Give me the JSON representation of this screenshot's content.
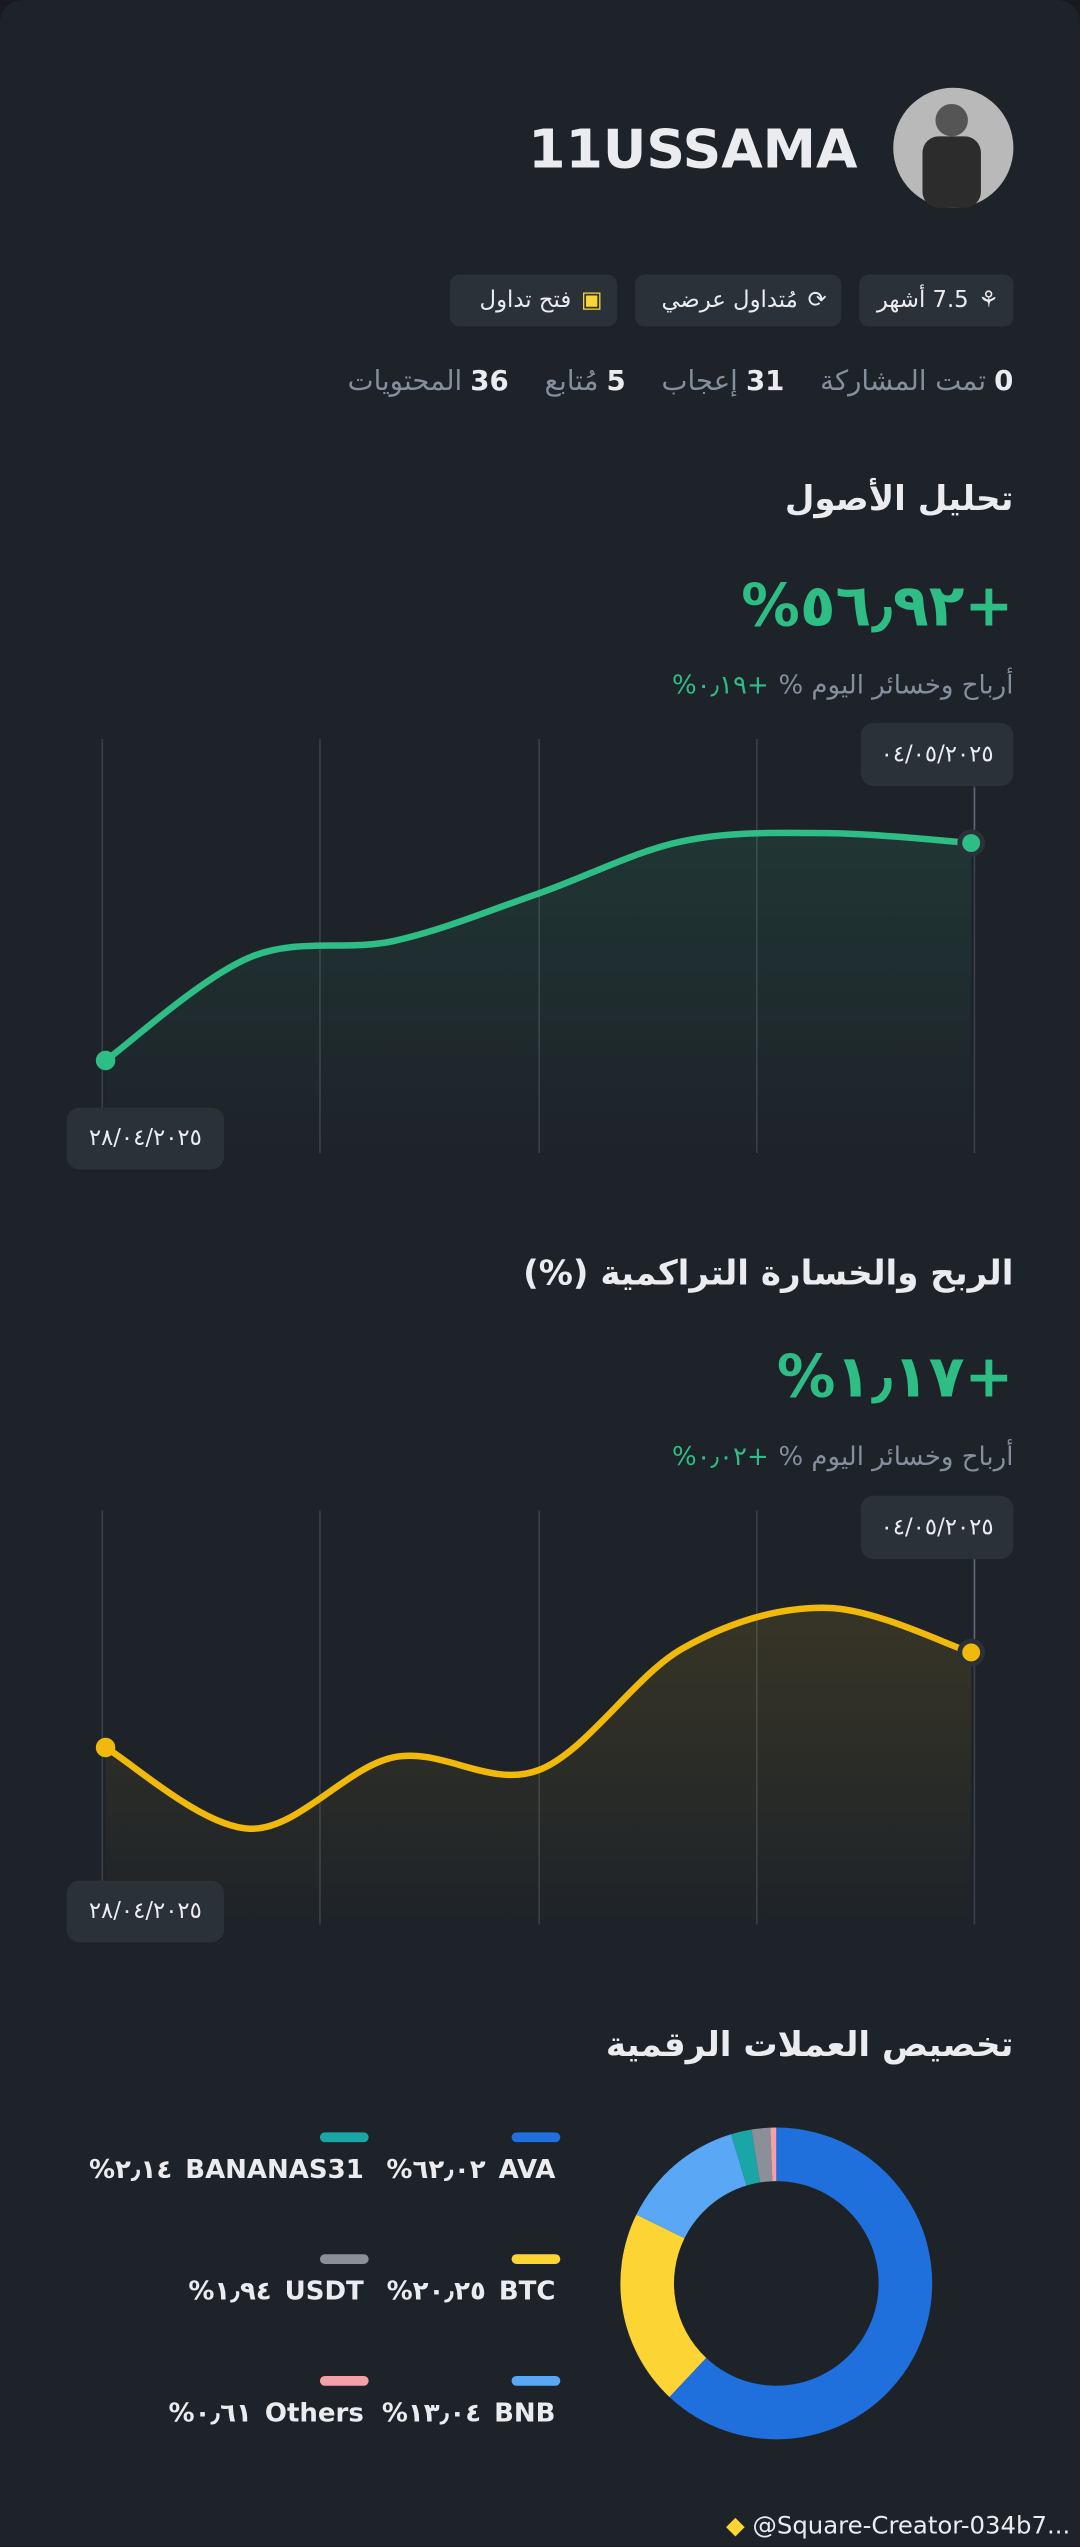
{
  "header": {
    "username": "11USSAMA",
    "badges": [
      "7.5 أشهر",
      "مُتداول عرضي",
      "فتح تداول"
    ],
    "stats": [
      {
        "value": 0,
        "label": "تمت المشاركة"
      },
      {
        "value": 31,
        "label": "إعجاب"
      },
      {
        "value": 5,
        "label": "مُتابع"
      },
      {
        "value": 36,
        "label": "المحتويات"
      }
    ]
  },
  "asset_analysis": {
    "title": "تحليل الأصول",
    "value": "%٥٦٫٩٢+",
    "today_label": "أرباح وخسائر اليوم %",
    "today_value": "%٠٫١٩+",
    "start_date": "٢٨/٠٤/٢٠٢٥",
    "end_date": "٠٤/٠٥/٢٠٢٥",
    "chart": {
      "type": "line",
      "color": "#2ebd85",
      "values": [
        0,
        27,
        31.3,
        43.7,
        57.4,
        59.5,
        56.92
      ]
    }
  },
  "cumulative_pnl": {
    "title": "الربح والخسارة التراكمية (%)",
    "value": "%١٫١٧+",
    "today_label": "أرباح وخسائر اليوم %",
    "today_value": "%٠٫٠٢+",
    "start_date": "٢٨/٠٤/٢٠٢٥",
    "end_date": "٠٤/٠٥/٢٠٢٥",
    "chart": {
      "type": "line",
      "color": "#f0b90b",
      "values": [
        0,
        -1.0,
        -0.12,
        -0.28,
        1.22,
        1.72,
        1.17
      ]
    }
  },
  "allocation": {
    "title": "تخصيص العملات الرقمية",
    "chart": {
      "type": "pie",
      "categories": [
        "AVA",
        "BTC",
        "BNB",
        "BANANAS31",
        "USDT",
        "Others"
      ],
      "values": [
        62.02,
        20.25,
        13.04,
        2.14,
        1.94,
        0.61
      ],
      "value_labels": [
        "%٦٢٫٠٢",
        "%٢٠٫٢٥",
        "%١٣٫٠٤",
        "%٢٫١٤",
        "%١٫٩٤",
        "%٠٫٦١"
      ],
      "colors": [
        "#1f6fdc",
        "#fcd535",
        "#5aa8f5",
        "#1aa6a6",
        "#8a8f98",
        "#f4a0a8"
      ]
    }
  },
  "watermark": "@Square-Creator-034b7..."
}
